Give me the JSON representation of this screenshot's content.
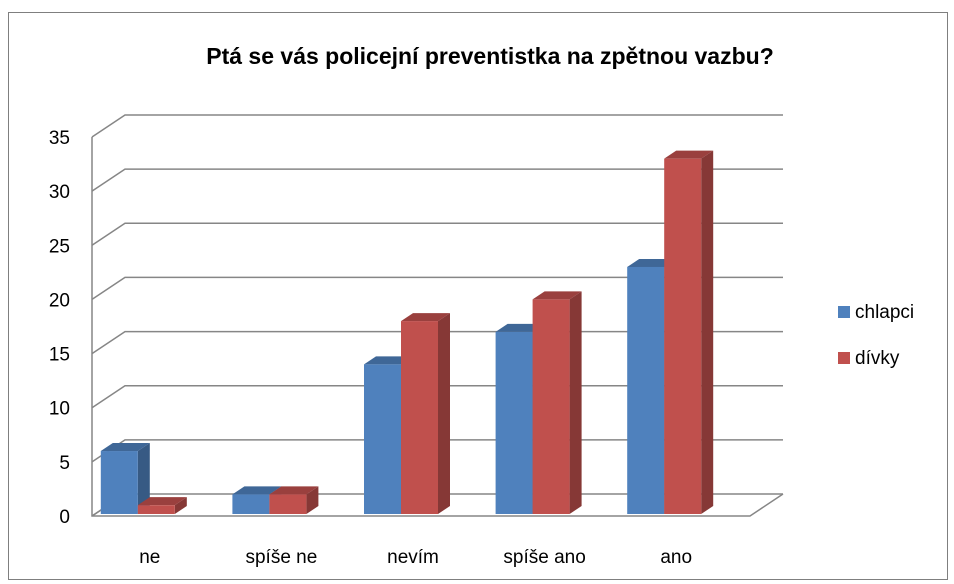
{
  "chart_data": {
    "type": "bar3d",
    "title": "Ptá se vás policejní preventistka na zpětnou vazbu?",
    "categories": [
      "ne",
      "spíše ne",
      "nevím",
      "spíše ano",
      "ano"
    ],
    "series": [
      {
        "name": "chlapci",
        "color": "#4f81bd",
        "values": [
          6,
          2,
          14,
          17,
          23
        ]
      },
      {
        "name": "dívky",
        "color": "#c0504d",
        "values": [
          1,
          2,
          18,
          20,
          33
        ]
      }
    ],
    "ylim": [
      0,
      35
    ],
    "yticks": [
      0,
      5,
      10,
      15,
      20,
      25,
      30,
      35
    ],
    "grid": true,
    "legend": "right"
  }
}
